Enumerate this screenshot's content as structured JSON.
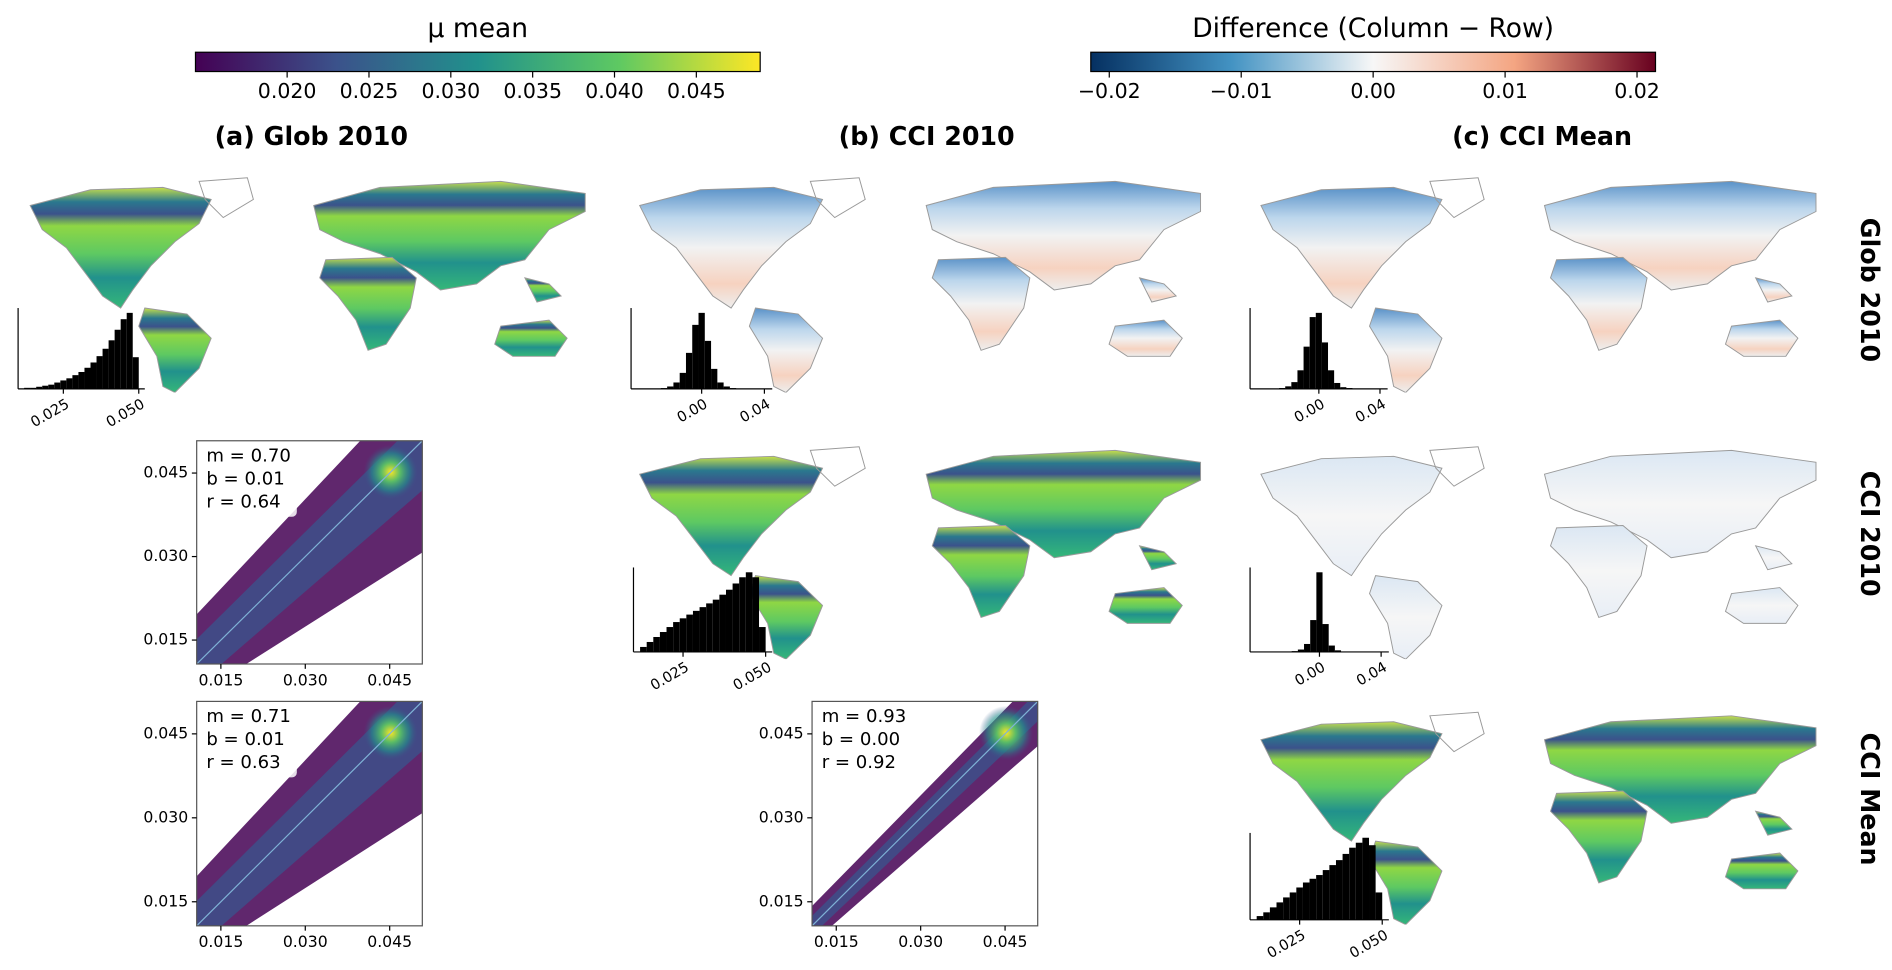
{
  "colorbars": [
    {
      "label": "μ mean",
      "colors": [
        "#440154",
        "#3b528b",
        "#21918c",
        "#5ec962",
        "#fde725"
      ],
      "lim": [
        0.0144,
        0.0489
      ],
      "ticks": [
        {
          "value": 0.02,
          "label": "0.020"
        },
        0.025,
        {
          "value": 0.03,
          "label": "0.030"
        },
        0.035,
        {
          "value": 0.04,
          "label": "0.040"
        },
        0.045
      ]
    },
    {
      "label": "Difference (Column − Row)",
      "colors": [
        "#053061",
        "#4393c3",
        "#f7f7f7",
        "#f4a582",
        "#67001f"
      ],
      "lim": [
        -0.0214,
        0.0214
      ],
      "ticks": [
        {
          "value": -0.02,
          "label": "−0.02"
        },
        {
          "value": -0.01,
          "label": "−0.01"
        },
        {
          "value": 0,
          "label": "0.00"
        },
        0.01,
        0.02
      ]
    }
  ],
  "column_titles": [
    "(a)  Glob 2010",
    "(b)  CCI 2010",
    "(c)  CCI Mean"
  ],
  "row_titles": [
    "Glob 2010",
    "CCI 2010",
    "CCI Mean"
  ],
  "chart_data": [
    {
      "type": "histogram",
      "color": "#000000",
      "xlim": [
        0.01,
        0.052
      ],
      "xticks": [
        0.025,
        {
          "value": 0.05,
          "label": "0.050"
        }
      ],
      "bins": [
        0.012,
        0.014,
        0.016,
        0.018,
        0.02,
        0.022,
        0.024,
        0.026,
        0.028,
        0.03,
        0.032,
        0.034,
        0.036,
        0.038,
        0.04,
        0.042,
        0.044,
        0.046,
        0.048,
        0.05
      ],
      "values": [
        1,
        1,
        2,
        3,
        4,
        6,
        8,
        10,
        13,
        16,
        20,
        25,
        31,
        38,
        46,
        56,
        66,
        72,
        30
      ]
    },
    {
      "type": "histogram",
      "color": "#000000",
      "xlim": [
        -0.045,
        0.045
      ],
      "xticks": [
        {
          "value": 0,
          "label": "0.00"
        },
        0.04
      ],
      "bins": [
        -0.03,
        -0.026,
        -0.022,
        -0.018,
        -0.014,
        -0.01,
        -0.006,
        -0.002,
        0.002,
        0.006,
        0.01,
        0.014,
        0.018,
        0.022,
        0.026,
        0.03
      ],
      "values": [
        0,
        1,
        3,
        8,
        20,
        45,
        80,
        95,
        60,
        25,
        8,
        3,
        1,
        0,
        0
      ]
    },
    {
      "type": "histogram",
      "color": "#000000",
      "xlim": [
        -0.045,
        0.045
      ],
      "xticks": [
        {
          "value": 0,
          "label": "0.00"
        },
        0.04
      ],
      "bins": [
        -0.03,
        -0.026,
        -0.022,
        -0.018,
        -0.014,
        -0.01,
        -0.006,
        -0.002,
        0.002,
        0.006,
        0.01,
        0.014,
        0.018,
        0.022,
        0.026,
        0.03
      ],
      "values": [
        0,
        1,
        3,
        8,
        22,
        50,
        85,
        90,
        55,
        22,
        7,
        2,
        1,
        0,
        0
      ]
    },
    {
      "type": "scatter_density",
      "annotations": [
        "m = 0.70",
        "b = 0.01",
        "r = 0.64"
      ],
      "xlim": [
        0.0107,
        0.0508
      ],
      "ylim": [
        0.0107,
        0.0508
      ],
      "xticks": [
        0.015,
        {
          "value": 0.03,
          "label": "0.030"
        },
        0.045
      ],
      "yticks": [
        0.015,
        {
          "value": 0.03,
          "label": "0.030"
        },
        0.045
      ]
    },
    {
      "type": "histogram",
      "color": "#000000",
      "xlim": [
        0.01,
        0.052
      ],
      "xticks": [
        0.025,
        {
          "value": 0.05,
          "label": "0.050"
        }
      ],
      "bins": [
        0.012,
        0.014,
        0.016,
        0.018,
        0.02,
        0.022,
        0.024,
        0.026,
        0.028,
        0.03,
        0.032,
        0.034,
        0.036,
        0.038,
        0.04,
        0.042,
        0.044,
        0.046,
        0.048,
        0.05
      ],
      "values": [
        4,
        8,
        12,
        16,
        20,
        24,
        27,
        30,
        33,
        36,
        39,
        42,
        46,
        50,
        55,
        60,
        64,
        60,
        20
      ]
    },
    {
      "type": "histogram",
      "color": "#000000",
      "xlim": [
        -0.045,
        0.045
      ],
      "xticks": [
        {
          "value": 0,
          "label": "0.00"
        },
        0.04
      ],
      "bins": [
        -0.03,
        -0.026,
        -0.022,
        -0.018,
        -0.014,
        -0.01,
        -0.006,
        -0.002,
        0.002,
        0.006,
        0.01,
        0.014,
        0.018,
        0.022,
        0.026,
        0.03
      ],
      "values": [
        0,
        0,
        0,
        1,
        3,
        10,
        40,
        100,
        35,
        8,
        2,
        0,
        0,
        0,
        0
      ]
    },
    {
      "type": "scatter_density",
      "annotations": [
        "m = 0.71",
        "b = 0.01",
        "r = 0.63"
      ],
      "xlim": [
        0.0107,
        0.0508
      ],
      "ylim": [
        0.0107,
        0.0508
      ],
      "xticks": [
        0.015,
        {
          "value": 0.03,
          "label": "0.030"
        },
        0.045
      ],
      "yticks": [
        0.015,
        {
          "value": 0.03,
          "label": "0.030"
        },
        0.045
      ]
    },
    {
      "type": "scatter_density",
      "annotations": [
        "m = 0.93",
        "b = 0.00",
        "r = 0.92"
      ],
      "xlim": [
        0.0107,
        0.0508
      ],
      "ylim": [
        0.0107,
        0.0508
      ],
      "xticks": [
        0.015,
        {
          "value": 0.03,
          "label": "0.030"
        },
        0.045
      ],
      "yticks": [
        0.015,
        {
          "value": 0.03,
          "label": "0.030"
        },
        0.045
      ]
    },
    {
      "type": "histogram",
      "color": "#000000",
      "xlim": [
        0.01,
        0.052
      ],
      "xticks": [
        0.025,
        {
          "value": 0.05,
          "label": "0.050"
        }
      ],
      "bins": [
        0.012,
        0.014,
        0.016,
        0.018,
        0.02,
        0.022,
        0.024,
        0.026,
        0.028,
        0.03,
        0.032,
        0.034,
        0.036,
        0.038,
        0.04,
        0.042,
        0.044,
        0.046,
        0.048,
        0.05
      ],
      "values": [
        3,
        6,
        10,
        14,
        18,
        22,
        26,
        30,
        33,
        36,
        40,
        44,
        48,
        53,
        58,
        62,
        66,
        60,
        22
      ]
    }
  ]
}
